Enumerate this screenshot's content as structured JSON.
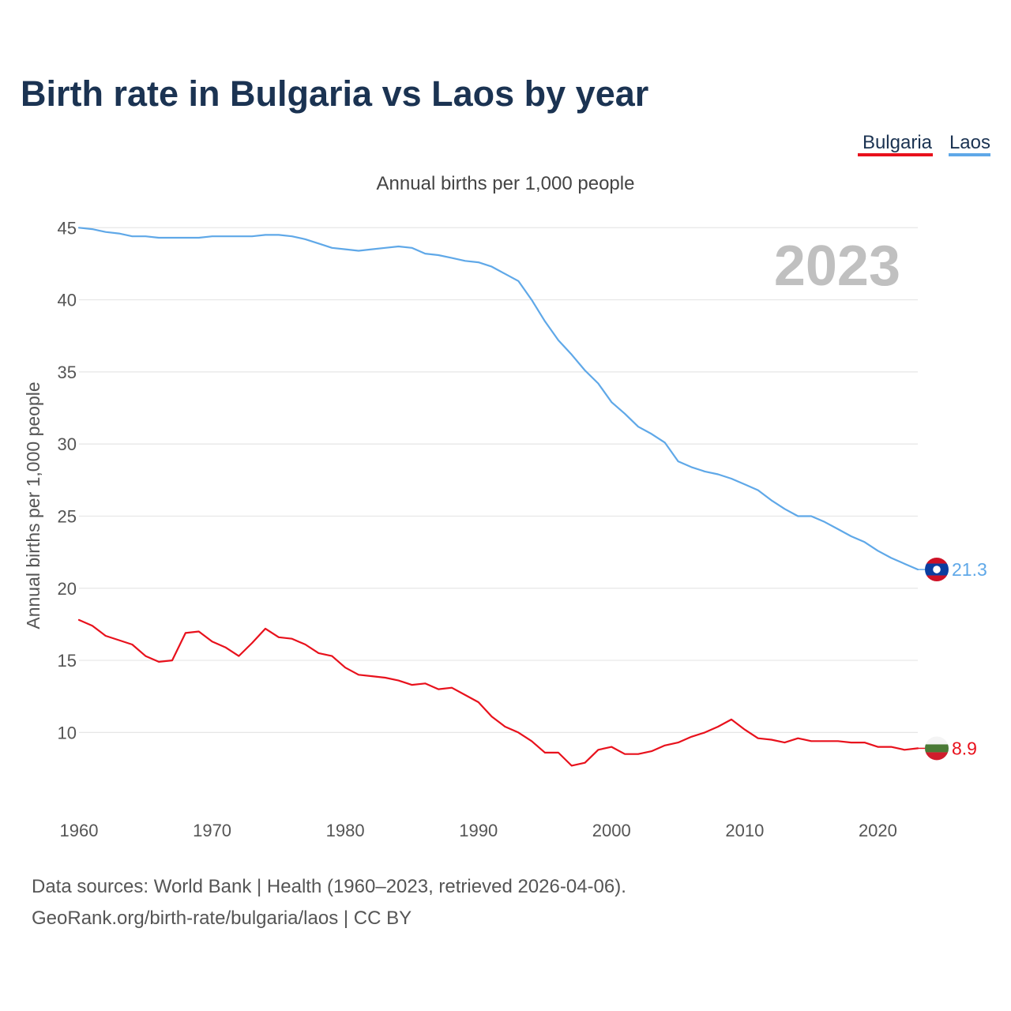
{
  "chart_data": {
    "type": "line",
    "title": "Birth rate in Bulgaria vs Laos by year",
    "subtitle": "Annual births per 1,000 people",
    "ylabel": "Annual births per 1,000 people",
    "xlabel": "",
    "xlim": [
      1960,
      2023
    ],
    "ylim": [
      5.2,
      46
    ],
    "yticks": [
      10,
      15,
      20,
      25,
      30,
      35,
      40,
      45
    ],
    "xticks": [
      1960,
      1970,
      1980,
      1990,
      2000,
      2010,
      2020
    ],
    "grid": true,
    "legend_position": "top-right",
    "current_year": "2023",
    "years": [
      1960,
      1961,
      1962,
      1963,
      1964,
      1965,
      1966,
      1967,
      1968,
      1969,
      1970,
      1971,
      1972,
      1973,
      1974,
      1975,
      1976,
      1977,
      1978,
      1979,
      1980,
      1981,
      1982,
      1983,
      1984,
      1985,
      1986,
      1987,
      1988,
      1989,
      1990,
      1991,
      1992,
      1993,
      1994,
      1995,
      1996,
      1997,
      1998,
      1999,
      2000,
      2001,
      2002,
      2003,
      2004,
      2005,
      2006,
      2007,
      2008,
      2009,
      2010,
      2011,
      2012,
      2013,
      2014,
      2015,
      2016,
      2017,
      2018,
      2019,
      2020,
      2021,
      2022,
      2023
    ],
    "series": [
      {
        "name": "Bulgaria",
        "color": "#e8111c",
        "end_label": "8.9",
        "values": [
          17.8,
          17.4,
          16.7,
          16.4,
          16.1,
          15.3,
          14.9,
          15.0,
          16.9,
          17.0,
          16.3,
          15.9,
          15.3,
          16.2,
          17.2,
          16.6,
          16.5,
          16.1,
          15.5,
          15.3,
          14.5,
          14.0,
          13.9,
          13.8,
          13.6,
          13.3,
          13.4,
          13.0,
          13.1,
          12.6,
          12.1,
          11.1,
          10.4,
          10.0,
          9.4,
          8.6,
          8.6,
          7.7,
          7.9,
          8.8,
          9.0,
          8.5,
          8.5,
          8.7,
          9.1,
          9.3,
          9.7,
          10.0,
          10.4,
          10.9,
          10.2,
          9.6,
          9.5,
          9.3,
          9.6,
          9.4,
          9.4,
          9.4,
          9.3,
          9.3,
          9.0,
          9.0,
          8.8,
          8.9
        ]
      },
      {
        "name": "Laos",
        "color": "#5fa8e8",
        "end_label": "21.3",
        "values": [
          45.0,
          44.9,
          44.7,
          44.6,
          44.4,
          44.4,
          44.3,
          44.3,
          44.3,
          44.3,
          44.4,
          44.4,
          44.4,
          44.4,
          44.5,
          44.5,
          44.4,
          44.2,
          43.9,
          43.6,
          43.5,
          43.4,
          43.5,
          43.6,
          43.7,
          43.6,
          43.2,
          43.1,
          42.9,
          42.7,
          42.6,
          42.3,
          41.8,
          41.3,
          40.0,
          38.5,
          37.2,
          36.2,
          35.1,
          34.2,
          32.9,
          32.1,
          31.2,
          30.7,
          30.1,
          28.8,
          28.4,
          28.1,
          27.9,
          27.6,
          27.2,
          26.8,
          26.1,
          25.5,
          25.0,
          25.0,
          24.6,
          24.1,
          23.6,
          23.2,
          22.6,
          22.1,
          21.7,
          21.3
        ]
      }
    ],
    "footer": {
      "line1": "Data sources: World Bank | Health (1960–2023, retrieved 2026-04-06).",
      "line2": "GeoRank.org/birth-rate/bulgaria/laos | CC BY"
    }
  }
}
